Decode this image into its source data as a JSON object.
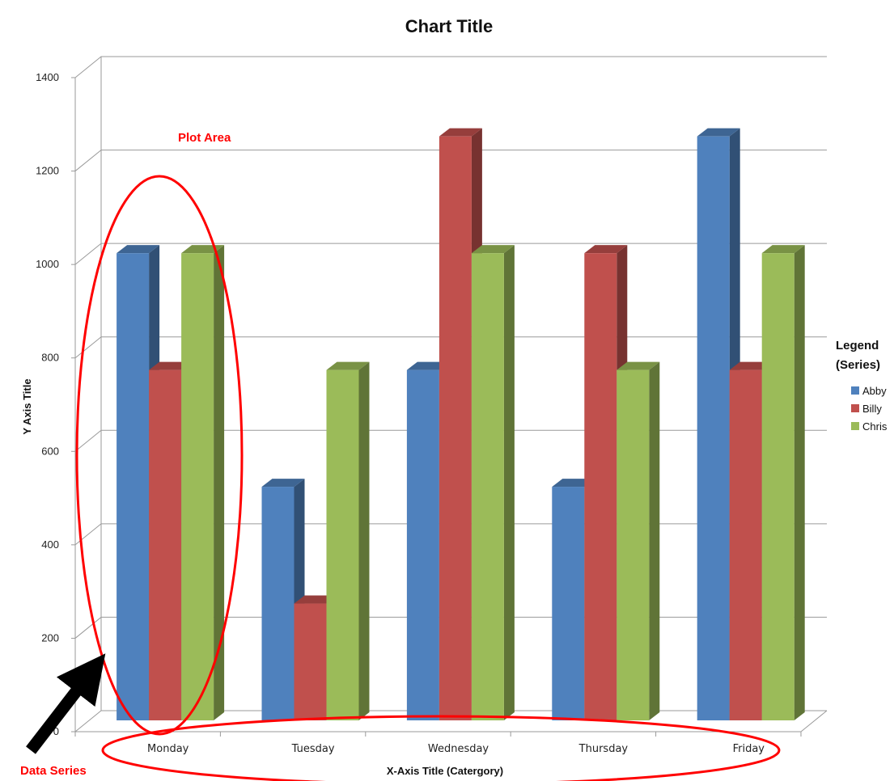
{
  "chart_data": {
    "type": "bar",
    "title": "Chart Title",
    "xlabel": "X-Axis Title (Catergory)",
    "ylabel": "Y Axis Title",
    "categories": [
      "Monday",
      "Tuesday",
      "Wednesday",
      "Thursday",
      "Friday"
    ],
    "series": [
      {
        "name": "Abby",
        "values": [
          1000,
          500,
          750,
          500,
          1250
        ],
        "color": "#4f81bd"
      },
      {
        "name": "Billy",
        "values": [
          750,
          250,
          1250,
          1000,
          750
        ],
        "color": "#c0504d"
      },
      {
        "name": "Chris",
        "values": [
          1000,
          750,
          1000,
          750,
          1000
        ],
        "color": "#9bbb59"
      }
    ],
    "ylim": [
      0,
      1400
    ],
    "yticks": [
      "0",
      "200",
      "400",
      "600",
      "800",
      "1000",
      "1200",
      "1400"
    ],
    "grid": true,
    "legend": {
      "title_line1": "Legend",
      "title_line2": "(Series)",
      "position": "right"
    },
    "style": "3d-clustered-column",
    "annotations": {
      "plot_area": "Plot Area",
      "data_series": "Data Series"
    }
  }
}
